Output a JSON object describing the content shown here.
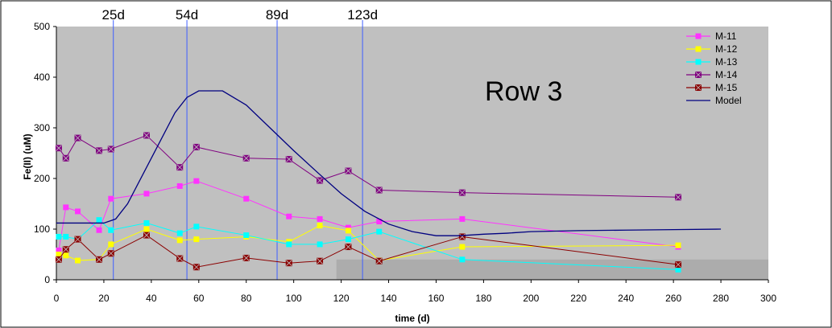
{
  "chart_data": {
    "type": "line",
    "title": "",
    "xlabel": "time (d)",
    "ylabel": "Fe(II) (uM)",
    "xlim": [
      0,
      300
    ],
    "ylim": [
      0,
      500
    ],
    "xticks": [
      0,
      20,
      40,
      60,
      80,
      100,
      120,
      140,
      160,
      180,
      200,
      220,
      240,
      260,
      280,
      300
    ],
    "yticks": [
      0,
      100,
      200,
      300,
      400,
      500
    ],
    "grid": false,
    "legend_position": "top-right",
    "annotation": "Row 3",
    "vertical_markers": [
      {
        "label": "25d",
        "x": 24
      },
      {
        "label": "54d",
        "x": 55
      },
      {
        "label": "89d",
        "x": 93
      },
      {
        "label": "123d",
        "x": 129
      }
    ],
    "colors": {
      "plot_background": "#c0c0c0",
      "shaded_region": "#acacac",
      "marker_lines": "#3f5fff"
    },
    "series": [
      {
        "name": "M-11",
        "color": "#ff33ff",
        "marker": "square",
        "x": [
          1,
          4,
          9,
          18,
          23,
          38,
          52,
          59,
          80,
          98,
          111,
          123,
          136,
          171,
          262
        ],
        "y": [
          58,
          143,
          135,
          98,
          160,
          170,
          185,
          195,
          160,
          125,
          120,
          103,
          115,
          120,
          65
        ]
      },
      {
        "name": "M-12",
        "color": "#ffff00",
        "marker": "square",
        "x": [
          1,
          4,
          9,
          18,
          23,
          38,
          52,
          59,
          80,
          98,
          111,
          123,
          136,
          171,
          262
        ],
        "y": [
          50,
          48,
          38,
          40,
          70,
          100,
          78,
          80,
          85,
          75,
          107,
          97,
          38,
          65,
          68
        ]
      },
      {
        "name": "M-13",
        "color": "#00ffff",
        "marker": "square",
        "x": [
          1,
          4,
          9,
          18,
          23,
          38,
          52,
          59,
          80,
          98,
          111,
          123,
          136,
          171,
          262
        ],
        "y": [
          85,
          85,
          80,
          118,
          98,
          112,
          92,
          105,
          88,
          70,
          70,
          80,
          95,
          40,
          20
        ]
      },
      {
        "name": "M-14",
        "color": "#800080",
        "marker": "square-x",
        "x": [
          1,
          4,
          9,
          18,
          23,
          38,
          52,
          59,
          80,
          98,
          111,
          123,
          136,
          171,
          262
        ],
        "y": [
          260,
          240,
          280,
          255,
          258,
          285,
          222,
          262,
          240,
          238,
          196,
          215,
          177,
          172,
          163
        ]
      },
      {
        "name": "M-15",
        "color": "#8b0000",
        "marker": "square-x",
        "x": [
          1,
          4,
          9,
          18,
          23,
          38,
          52,
          59,
          80,
          98,
          111,
          123,
          136,
          171,
          262
        ],
        "y": [
          40,
          60,
          80,
          40,
          52,
          88,
          42,
          25,
          43,
          33,
          37,
          65,
          37,
          85,
          30
        ]
      },
      {
        "name": "Model",
        "color": "#000080",
        "marker": "none",
        "x": [
          0,
          10,
          20,
          25,
          30,
          40,
          50,
          55,
          60,
          70,
          80,
          90,
          100,
          110,
          120,
          130,
          140,
          150,
          160,
          170,
          180,
          190,
          200,
          220,
          240,
          260,
          280
        ],
        "y": [
          112,
          112,
          112,
          120,
          150,
          240,
          330,
          360,
          373,
          373,
          345,
          300,
          255,
          212,
          170,
          135,
          110,
          95,
          87,
          87,
          90,
          92,
          95,
          97,
          98,
          99,
          100
        ]
      }
    ]
  }
}
